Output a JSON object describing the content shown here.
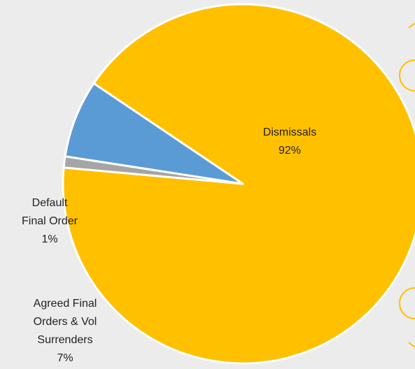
{
  "chart_data": {
    "type": "pie",
    "start_angle_deg": 146,
    "direction": "counterclockwise",
    "slices": [
      {
        "label_lines": [
          "Dismissals",
          "92%"
        ],
        "value": 92,
        "color": "#ffc000"
      },
      {
        "label_lines": [
          "Default",
          "Final Order",
          "1%"
        ],
        "value": 1,
        "color": "#a5a5a5"
      },
      {
        "label_lines": [
          "Agreed Final",
          "Orders & Vol",
          "Surrenders",
          "7%"
        ],
        "value": 7,
        "color": "#5b9bd5"
      }
    ],
    "slice_border_color": "#ffffff",
    "background": "#ececec",
    "accent_color": "#ffc000"
  }
}
